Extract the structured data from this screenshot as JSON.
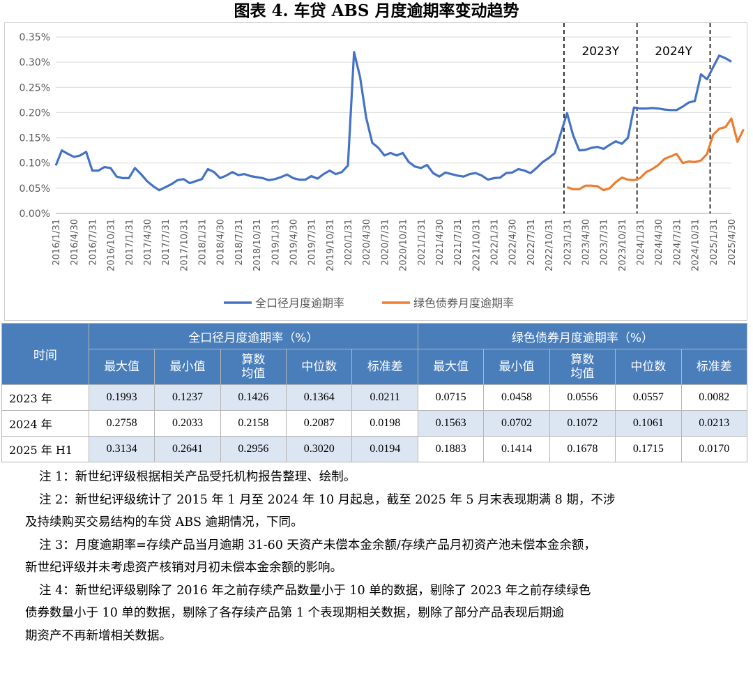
{
  "title": "图表 4.  车贷 ABS 月度逾期率变动趋势",
  "chart_data": {
    "type": "line",
    "title": "",
    "xlabel": "",
    "ylabel": "",
    "ylim": [
      0,
      0.35
    ],
    "y_unit": "%",
    "yticks": [
      "0.00%",
      "0.05%",
      "0.10%",
      "0.15%",
      "0.20%",
      "0.25%",
      "0.30%",
      "0.35%"
    ],
    "x_tick_labels": [
      "2016/1/31",
      "2016/4/30",
      "2016/7/31",
      "2016/10/31",
      "2017/1/31",
      "2017/4/30",
      "2017/7/31",
      "2017/10/31",
      "2018/1/31",
      "2018/4/30",
      "2018/7/31",
      "2018/10/31",
      "2019/1/31",
      "2019/4/30",
      "2019/7/31",
      "2019/10/31",
      "2020/1/31",
      "2020/4/30",
      "2020/7/31",
      "2020/10/31",
      "2021/1/31",
      "2021/4/30",
      "2021/7/31",
      "2021/10/31",
      "2022/1/31",
      "2022/4/30",
      "2022/7/31",
      "2022/10/31",
      "2023/1/31",
      "2023/4/30",
      "2023/7/31",
      "2023/10/31",
      "2024/1/31",
      "2024/4/30",
      "2024/7/31",
      "2024/10/31",
      "2025/1/31",
      "2025/4/30"
    ],
    "x_tick_every_months": 3,
    "x_start": "2016/1/31",
    "x_end": "2025/5/31",
    "grid": "horizontal",
    "legend_position": "bottom",
    "period_labels": [
      "2023Y",
      "2024Y"
    ],
    "series": [
      {
        "name": "全口径月度逾期率",
        "color": "#4472c4",
        "values": [
          0.095,
          0.125,
          0.118,
          0.112,
          0.115,
          0.122,
          0.085,
          0.085,
          0.092,
          0.09,
          0.073,
          0.07,
          0.07,
          0.09,
          0.078,
          0.064,
          0.054,
          0.046,
          0.052,
          0.058,
          0.066,
          0.068,
          0.06,
          0.064,
          0.068,
          0.088,
          0.082,
          0.07,
          0.075,
          0.082,
          0.076,
          0.078,
          0.074,
          0.072,
          0.07,
          0.066,
          0.068,
          0.072,
          0.077,
          0.07,
          0.067,
          0.067,
          0.074,
          0.069,
          0.078,
          0.085,
          0.078,
          0.082,
          0.095,
          0.32,
          0.27,
          0.19,
          0.14,
          0.13,
          0.115,
          0.12,
          0.115,
          0.12,
          0.102,
          0.093,
          0.09,
          0.096,
          0.08,
          0.073,
          0.081,
          0.078,
          0.075,
          0.073,
          0.078,
          0.08,
          0.075,
          0.067,
          0.07,
          0.071,
          0.08,
          0.081,
          0.088,
          0.085,
          0.08,
          0.09,
          0.102,
          0.11,
          0.12,
          0.16,
          0.199,
          0.155,
          0.125,
          0.126,
          0.13,
          0.132,
          0.128,
          0.136,
          0.143,
          0.138,
          0.15,
          0.21,
          0.208,
          0.208,
          0.209,
          0.208,
          0.206,
          0.205,
          0.205,
          0.212,
          0.22,
          0.223,
          0.276,
          0.266,
          0.29,
          0.313,
          0.308,
          0.301
        ]
      },
      {
        "name": "绿色债券月度逾期率",
        "color": "#ed7d31",
        "values": [
          null,
          null,
          null,
          null,
          null,
          null,
          null,
          null,
          null,
          null,
          null,
          null,
          null,
          null,
          null,
          null,
          null,
          null,
          null,
          null,
          null,
          null,
          null,
          null,
          null,
          null,
          null,
          null,
          null,
          null,
          null,
          null,
          null,
          null,
          null,
          null,
          null,
          null,
          null,
          null,
          null,
          null,
          null,
          null,
          null,
          null,
          null,
          null,
          null,
          null,
          null,
          null,
          null,
          null,
          null,
          null,
          null,
          null,
          null,
          null,
          null,
          null,
          null,
          null,
          null,
          null,
          null,
          null,
          null,
          null,
          null,
          null,
          null,
          null,
          null,
          null,
          null,
          null,
          null,
          null,
          null,
          null,
          null,
          null,
          0.052,
          0.048,
          0.048,
          0.055,
          0.055,
          0.054,
          0.046,
          0.05,
          0.062,
          0.071,
          0.067,
          0.066,
          0.07,
          0.082,
          0.088,
          0.096,
          0.108,
          0.113,
          0.118,
          0.1,
          0.103,
          0.102,
          0.105,
          0.118,
          0.156,
          0.168,
          0.171,
          0.188,
          0.142,
          0.167
        ]
      }
    ]
  },
  "table": {
    "time_header": "时间",
    "group_headers": [
      "全口径月度逾期率（%）",
      "绿色债券月度逾期率（%）"
    ],
    "sub_headers": [
      "最大值",
      "最小值",
      "算数\n均值",
      "中位数",
      "标准差",
      "最大值",
      "最小值",
      "算数\n均值",
      "中位数",
      "标准差"
    ],
    "rows": [
      {
        "label": "2023 年",
        "values": [
          "0.1993",
          "0.1237",
          "0.1426",
          "0.1364",
          "0.0211",
          "0.0715",
          "0.0458",
          "0.0556",
          "0.0557",
          "0.0082"
        ]
      },
      {
        "label": "2024 年",
        "values": [
          "0.2758",
          "0.2033",
          "0.2158",
          "0.2087",
          "0.0198",
          "0.1563",
          "0.0702",
          "0.1072",
          "0.1061",
          "0.0213"
        ]
      },
      {
        "label": "2025 年 H1",
        "values": [
          "0.3134",
          "0.2641",
          "0.2956",
          "0.3020",
          "0.0194",
          "0.1883",
          "0.1414",
          "0.1678",
          "0.1715",
          "0.0170"
        ]
      }
    ]
  },
  "notes": [
    "注 1：新世纪评级根据相关产品受托机构报告整理、绘制。",
    "注 2：新世纪评级统计了 2015 年 1 月至 2024 年 10 月起息，截至 2025 年 5 月末表现期满 8 期，不涉",
    "及持续购买交易结构的车贷 ABS 逾期情况，下同。",
    "注  3：月度逾期率=存续产品当月逾期 31-60 天资产未偿本金余额/存续产品月初资产池未偿本金余额，",
    "新世纪评级并未考虑资产核销对月初未偿本金余额的影响。",
    "注 4：新世纪评级剔除了 2016 年之前存续产品数量小于 10 单的数据，剔除了 2023 年之前存续绿色",
    "债券数量小于 10 单的数据，剔除了各存续产品第 1 个表现期相关数据，剔除了部分产品表现后期逾",
    "期资产不再新增相关数据。"
  ]
}
